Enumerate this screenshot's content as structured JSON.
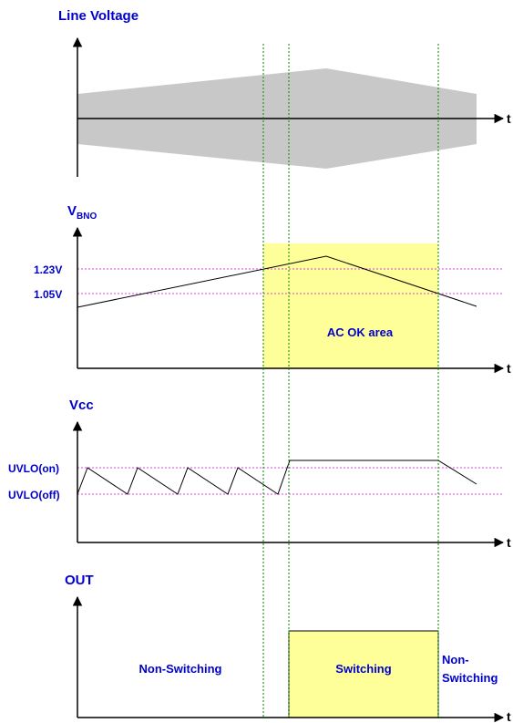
{
  "panels": {
    "line_voltage": {
      "title": "Line Voltage",
      "axis_label": "t"
    },
    "vbno": {
      "title_main": "V",
      "title_sub": "BNO",
      "axis_label": "t",
      "level_high": "1.23V",
      "level_low": "1.05V",
      "region_label": "AC OK area"
    },
    "vcc": {
      "title": "Vcc",
      "axis_label": "t",
      "level_on": "UVLO(on)",
      "level_off": "UVLO(off)"
    },
    "out": {
      "title": "OUT",
      "axis_label": "t",
      "label_before": "Non-Switching",
      "label_during": "Switching",
      "label_after_line1": "Non-",
      "label_after_line2": "Switching"
    }
  },
  "colors": {
    "label_text": "#0000CC",
    "highlight_fill": "#FFFF99",
    "envelope_fill": "#C8C8C8",
    "threshold_line": "#E040E0",
    "marker_line": "#008800",
    "trace": "#000000"
  }
}
